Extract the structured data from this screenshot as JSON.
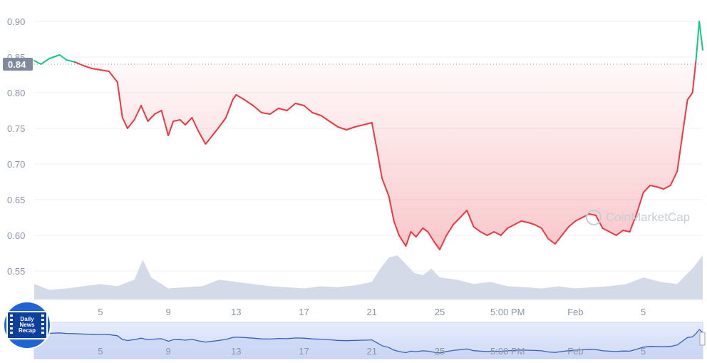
{
  "chart_data": {
    "type": "area",
    "title": "",
    "xlabel": "",
    "ylabel": "",
    "baseline_label": "0.84",
    "baseline_value": 0.84,
    "ylim": [
      0.51,
      0.92
    ],
    "y_ticks": [
      "0.90",
      "0.85",
      "0.80",
      "0.75",
      "0.70",
      "0.65",
      "0.60",
      "0.55"
    ],
    "x_ticks": [
      "5",
      "9",
      "13",
      "17",
      "21",
      "25",
      "5:00 PM",
      "Feb",
      "5"
    ],
    "x_tick_days": [
      5,
      9,
      13,
      17,
      21,
      25,
      29,
      33,
      37
    ],
    "xlim": [
      1.1,
      40.5
    ],
    "series": [
      {
        "x": [
          1.1,
          1.5,
          2,
          2.6,
          3,
          3.5,
          4,
          4.5,
          5,
          5.5,
          6,
          6.3,
          6.6,
          7,
          7.4,
          7.8,
          8.2,
          8.6,
          9,
          9.3,
          9.7,
          10,
          10.4,
          10.8,
          11.2,
          11.6,
          12,
          12.4,
          12.8,
          13,
          13.5,
          14,
          14.5,
          15,
          15.5,
          16,
          16.5,
          17,
          17.5,
          18,
          18.5,
          19,
          19.5,
          20,
          20.5,
          21,
          21.3,
          21.6,
          22,
          22.3,
          22.6,
          23,
          23.3,
          23.6,
          24,
          24.3,
          24.7,
          25,
          25.4,
          25.8,
          26.2,
          26.6,
          27,
          27.4,
          27.8,
          28.2,
          28.6,
          29,
          29.4,
          29.8,
          30.2,
          30.6,
          31,
          31.4,
          31.8,
          32.2,
          32.6,
          33,
          33.4,
          33.8,
          34.2,
          34.6,
          35,
          35.4,
          35.8,
          36.2,
          36.6,
          37,
          37.4,
          37.8,
          38.2,
          38.6,
          39,
          39.3,
          39.6,
          39.9,
          40.1,
          40.3,
          40.5
        ],
        "y": [
          0.845,
          0.84,
          0.848,
          0.853,
          0.846,
          0.843,
          0.838,
          0.834,
          0.832,
          0.83,
          0.815,
          0.765,
          0.75,
          0.762,
          0.782,
          0.76,
          0.77,
          0.775,
          0.74,
          0.76,
          0.762,
          0.755,
          0.765,
          0.745,
          0.728,
          0.74,
          0.752,
          0.765,
          0.79,
          0.797,
          0.79,
          0.782,
          0.772,
          0.77,
          0.778,
          0.775,
          0.785,
          0.782,
          0.772,
          0.768,
          0.76,
          0.752,
          0.748,
          0.752,
          0.755,
          0.758,
          0.72,
          0.68,
          0.655,
          0.62,
          0.6,
          0.585,
          0.605,
          0.598,
          0.61,
          0.605,
          0.59,
          0.58,
          0.6,
          0.615,
          0.625,
          0.635,
          0.612,
          0.605,
          0.6,
          0.605,
          0.6,
          0.61,
          0.615,
          0.62,
          0.618,
          0.615,
          0.61,
          0.595,
          0.588,
          0.6,
          0.612,
          0.62,
          0.625,
          0.63,
          0.628,
          0.61,
          0.605,
          0.6,
          0.607,
          0.605,
          0.63,
          0.66,
          0.67,
          0.668,
          0.665,
          0.67,
          0.69,
          0.74,
          0.79,
          0.8,
          0.845,
          0.9,
          0.86
        ]
      }
    ],
    "volume": {
      "x": [
        1.1,
        2,
        3,
        4,
        5,
        6,
        7,
        7.5,
        8,
        9,
        10,
        11,
        12,
        13,
        14,
        15,
        16,
        17,
        18,
        19,
        20,
        21,
        21.5,
        22,
        22.5,
        23,
        23.5,
        24,
        24.5,
        25,
        26,
        27,
        28,
        29,
        30,
        31,
        32,
        33,
        34,
        35,
        36,
        37,
        38,
        39,
        39.5,
        40,
        40.5
      ],
      "v": [
        0.35,
        0.22,
        0.25,
        0.3,
        0.35,
        0.3,
        0.45,
        0.9,
        0.5,
        0.25,
        0.28,
        0.3,
        0.45,
        0.4,
        0.35,
        0.3,
        0.28,
        0.25,
        0.3,
        0.28,
        0.32,
        0.4,
        0.7,
        0.95,
        1,
        0.8,
        0.6,
        0.55,
        0.7,
        0.5,
        0.45,
        0.35,
        0.4,
        0.3,
        0.28,
        0.25,
        0.3,
        0.25,
        0.28,
        0.3,
        0.35,
        0.5,
        0.4,
        0.35,
        0.55,
        0.75,
        1
      ]
    }
  },
  "watermark_text": "CoinMarketCap",
  "badge": {
    "line1": "Daily",
    "line2": "News",
    "line3": "Recap"
  },
  "colors": {
    "up": "#16c784",
    "down": "#ea3943",
    "grid": "#eff2f5",
    "volume": "#cfd6e4",
    "navigator": "#3861b5"
  }
}
